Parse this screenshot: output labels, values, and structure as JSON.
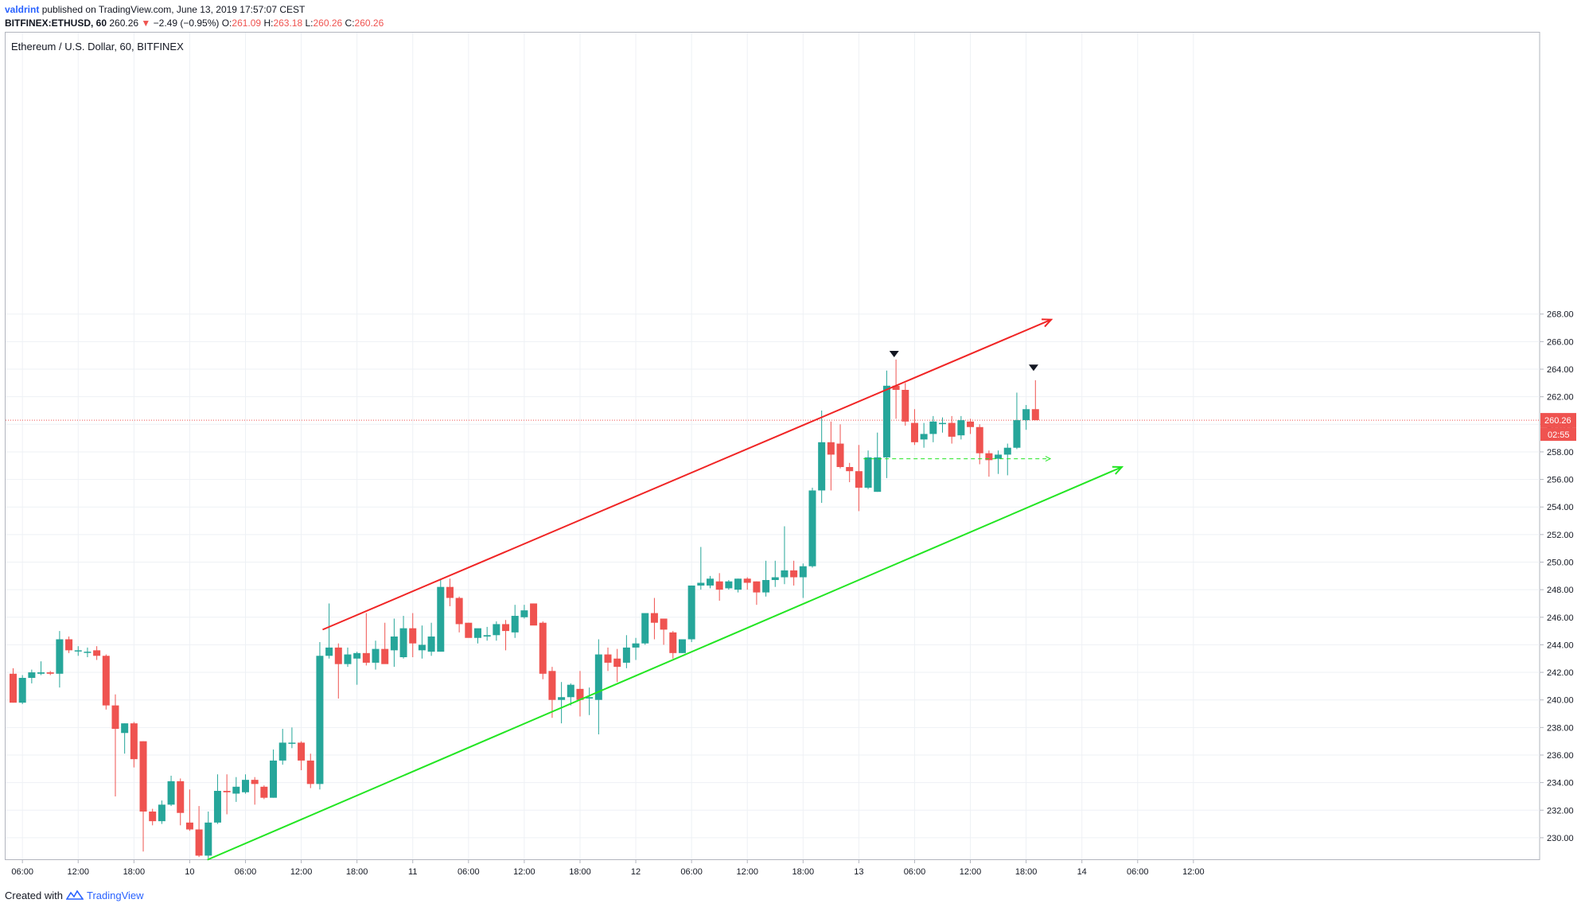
{
  "header": {
    "publisher": "valdrint",
    "published_text": "published on TradingView.com, June 13, 2019 17:57:07 CEST",
    "symbol_interval": "BITFINEX:ETHUSD, 60",
    "last": "260.26",
    "change": "−2.49 (−0.95%)",
    "o_label": "O:",
    "o_value": "261.09",
    "h_label": "H:",
    "h_value": "263.18",
    "l_label": "L:",
    "l_value": "260.26",
    "c_label": "C:",
    "c_value": "260.26"
  },
  "legend": "Ethereum / U.S. Dollar, 60, BITFINEX",
  "footer": {
    "created_with": "Created with",
    "brand": "TradingView"
  },
  "colors": {
    "up": "#26a69a",
    "down": "#ef5350",
    "resistance": "#f02525",
    "support": "#23e523",
    "grid": "#eef1f5",
    "axis": "#b2b5be"
  },
  "chart_data": {
    "type": "candlestick",
    "title": "Ethereum / U.S. Dollar, 60, BITFINEX",
    "xlabel": "",
    "ylabel": "",
    "ylim": [
      228,
      268
    ],
    "y_ticks": [
      "230.00",
      "232.00",
      "234.00",
      "236.00",
      "238.00",
      "240.00",
      "242.00",
      "244.00",
      "246.00",
      "248.00",
      "250.00",
      "252.00",
      "254.00",
      "256.00",
      "258.00",
      "260.00",
      "262.00",
      "264.00",
      "266.00",
      "268.00"
    ],
    "x_ticks": [
      {
        "h": 1,
        "label": "06:00"
      },
      {
        "h": 7,
        "label": "12:00"
      },
      {
        "h": 13,
        "label": "18:00"
      },
      {
        "h": 19,
        "label": "10"
      },
      {
        "h": 25,
        "label": "06:00"
      },
      {
        "h": 31,
        "label": "12:00"
      },
      {
        "h": 37,
        "label": "18:00"
      },
      {
        "h": 43,
        "label": "11"
      },
      {
        "h": 49,
        "label": "06:00"
      },
      {
        "h": 55,
        "label": "12:00"
      },
      {
        "h": 61,
        "label": "18:00"
      },
      {
        "h": 67,
        "label": "12"
      },
      {
        "h": 73,
        "label": "06:00"
      },
      {
        "h": 79,
        "label": "12:00"
      },
      {
        "h": 85,
        "label": "18:00"
      },
      {
        "h": 91,
        "label": "13"
      },
      {
        "h": 97,
        "label": "06:00"
      },
      {
        "h": 103,
        "label": "12:00"
      },
      {
        "h": 109,
        "label": "18:00"
      },
      {
        "h": 115,
        "label": "14"
      },
      {
        "h": 121,
        "label": "06:00"
      },
      {
        "h": 127,
        "label": "12:00"
      }
    ],
    "candles": [
      {
        "o": 241.9,
        "h": 242.3,
        "l": 239.8,
        "c": 239.8
      },
      {
        "o": 239.8,
        "h": 241.8,
        "l": 239.7,
        "c": 241.6
      },
      {
        "o": 241.6,
        "h": 242.2,
        "l": 241.2,
        "c": 242.0
      },
      {
        "o": 241.9,
        "h": 242.8,
        "l": 241.8,
        "c": 242.0
      },
      {
        "o": 242.0,
        "h": 242.1,
        "l": 241.8,
        "c": 241.9
      },
      {
        "o": 241.9,
        "h": 245.0,
        "l": 240.9,
        "c": 244.4
      },
      {
        "o": 244.4,
        "h": 244.6,
        "l": 243.4,
        "c": 243.6
      },
      {
        "o": 243.6,
        "h": 243.9,
        "l": 243.2,
        "c": 243.6
      },
      {
        "o": 243.5,
        "h": 243.8,
        "l": 243.1,
        "c": 243.5
      },
      {
        "o": 243.6,
        "h": 243.9,
        "l": 242.9,
        "c": 243.2
      },
      {
        "o": 243.2,
        "h": 243.3,
        "l": 239.3,
        "c": 239.6
      },
      {
        "o": 239.6,
        "h": 240.4,
        "l": 233.0,
        "c": 237.9
      },
      {
        "o": 237.6,
        "h": 238.3,
        "l": 236.1,
        "c": 238.3
      },
      {
        "o": 238.3,
        "h": 238.4,
        "l": 235.1,
        "c": 235.7
      },
      {
        "o": 237.0,
        "h": 237.0,
        "l": 229.0,
        "c": 231.9
      },
      {
        "o": 231.9,
        "h": 232.1,
        "l": 230.9,
        "c": 231.2
      },
      {
        "o": 231.2,
        "h": 232.7,
        "l": 231.0,
        "c": 232.4
      },
      {
        "o": 232.4,
        "h": 234.5,
        "l": 232.3,
        "c": 234.1
      },
      {
        "o": 234.1,
        "h": 234.3,
        "l": 230.9,
        "c": 231.8
      },
      {
        "o": 231.1,
        "h": 233.5,
        "l": 230.5,
        "c": 230.6
      },
      {
        "o": 230.6,
        "h": 232.3,
        "l": 228.6,
        "c": 228.7
      },
      {
        "o": 228.7,
        "h": 231.9,
        "l": 228.5,
        "c": 231.1
      },
      {
        "o": 231.1,
        "h": 234.6,
        "l": 231.0,
        "c": 233.4
      },
      {
        "o": 233.4,
        "h": 234.6,
        "l": 231.7,
        "c": 233.3
      },
      {
        "o": 233.2,
        "h": 234.4,
        "l": 232.6,
        "c": 233.7
      },
      {
        "o": 233.3,
        "h": 234.6,
        "l": 233.2,
        "c": 234.2
      },
      {
        "o": 234.2,
        "h": 234.4,
        "l": 232.4,
        "c": 233.9
      },
      {
        "o": 233.7,
        "h": 233.8,
        "l": 232.8,
        "c": 232.9
      },
      {
        "o": 232.9,
        "h": 236.4,
        "l": 232.9,
        "c": 235.6
      },
      {
        "o": 235.6,
        "h": 237.9,
        "l": 235.3,
        "c": 236.9
      },
      {
        "o": 236.9,
        "h": 238.0,
        "l": 236.5,
        "c": 236.9
      },
      {
        "o": 236.9,
        "h": 237.0,
        "l": 234.9,
        "c": 235.6
      },
      {
        "o": 235.6,
        "h": 236.1,
        "l": 233.6,
        "c": 233.9
      },
      {
        "o": 233.9,
        "h": 244.2,
        "l": 233.5,
        "c": 243.2
      },
      {
        "o": 243.2,
        "h": 247.0,
        "l": 243.0,
        "c": 243.8
      },
      {
        "o": 243.8,
        "h": 244.1,
        "l": 240.1,
        "c": 242.6
      },
      {
        "o": 242.6,
        "h": 243.8,
        "l": 242.4,
        "c": 243.3
      },
      {
        "o": 243.0,
        "h": 243.5,
        "l": 241.1,
        "c": 243.4
      },
      {
        "o": 243.4,
        "h": 246.3,
        "l": 242.5,
        "c": 242.7
      },
      {
        "o": 242.7,
        "h": 244.3,
        "l": 242.2,
        "c": 243.7
      },
      {
        "o": 243.7,
        "h": 245.6,
        "l": 242.7,
        "c": 242.6
      },
      {
        "o": 243.6,
        "h": 245.9,
        "l": 242.4,
        "c": 244.6
      },
      {
        "o": 243.1,
        "h": 246.1,
        "l": 243.0,
        "c": 245.2
      },
      {
        "o": 245.2,
        "h": 246.3,
        "l": 243.1,
        "c": 244.1
      },
      {
        "o": 243.6,
        "h": 245.4,
        "l": 243.0,
        "c": 244.0
      },
      {
        "o": 243.5,
        "h": 245.6,
        "l": 243.2,
        "c": 244.6
      },
      {
        "o": 243.5,
        "h": 248.7,
        "l": 243.5,
        "c": 248.2
      },
      {
        "o": 248.2,
        "h": 248.8,
        "l": 246.8,
        "c": 247.4
      },
      {
        "o": 247.4,
        "h": 247.5,
        "l": 244.9,
        "c": 245.5
      },
      {
        "o": 245.6,
        "h": 245.6,
        "l": 244.8,
        "c": 244.5
      },
      {
        "o": 244.5,
        "h": 245.0,
        "l": 244.1,
        "c": 245.2
      },
      {
        "o": 244.6,
        "h": 245.3,
        "l": 244.3,
        "c": 244.7
      },
      {
        "o": 244.7,
        "h": 245.7,
        "l": 244.3,
        "c": 245.5
      },
      {
        "o": 245.5,
        "h": 245.8,
        "l": 243.6,
        "c": 245.0
      },
      {
        "o": 244.9,
        "h": 246.9,
        "l": 244.5,
        "c": 246.1
      },
      {
        "o": 246.0,
        "h": 246.9,
        "l": 245.9,
        "c": 246.5
      },
      {
        "o": 247.0,
        "h": 247.0,
        "l": 245.7,
        "c": 245.4
      },
      {
        "o": 245.6,
        "h": 245.7,
        "l": 241.5,
        "c": 241.9
      },
      {
        "o": 242.1,
        "h": 242.4,
        "l": 238.7,
        "c": 240.0
      },
      {
        "o": 240.0,
        "h": 241.3,
        "l": 238.3,
        "c": 240.2
      },
      {
        "o": 240.2,
        "h": 241.2,
        "l": 239.6,
        "c": 241.1
      },
      {
        "o": 240.8,
        "h": 242.1,
        "l": 238.8,
        "c": 240.0
      },
      {
        "o": 240.1,
        "h": 240.9,
        "l": 238.9,
        "c": 240.2
      },
      {
        "o": 240.0,
        "h": 244.4,
        "l": 237.5,
        "c": 243.3
      },
      {
        "o": 243.3,
        "h": 243.8,
        "l": 242.1,
        "c": 242.7
      },
      {
        "o": 243.0,
        "h": 243.7,
        "l": 241.3,
        "c": 242.4
      },
      {
        "o": 242.7,
        "h": 244.7,
        "l": 242.3,
        "c": 243.8
      },
      {
        "o": 243.8,
        "h": 244.5,
        "l": 242.9,
        "c": 244.1
      },
      {
        "o": 244.1,
        "h": 246.1,
        "l": 244.0,
        "c": 246.3
      },
      {
        "o": 246.3,
        "h": 247.4,
        "l": 244.4,
        "c": 245.6
      },
      {
        "o": 245.9,
        "h": 245.9,
        "l": 244.0,
        "c": 245.1
      },
      {
        "o": 244.9,
        "h": 245.0,
        "l": 243.0,
        "c": 243.4
      },
      {
        "o": 243.4,
        "h": 244.4,
        "l": 243.4,
        "c": 244.4
      },
      {
        "o": 244.4,
        "h": 248.3,
        "l": 244.2,
        "c": 248.3
      },
      {
        "o": 248.3,
        "h": 251.1,
        "l": 248.0,
        "c": 248.5
      },
      {
        "o": 248.3,
        "h": 249.0,
        "l": 248.1,
        "c": 248.8
      },
      {
        "o": 248.6,
        "h": 249.2,
        "l": 247.2,
        "c": 248.0
      },
      {
        "o": 248.1,
        "h": 248.7,
        "l": 248.0,
        "c": 248.6
      },
      {
        "o": 248.0,
        "h": 248.8,
        "l": 247.8,
        "c": 248.8
      },
      {
        "o": 248.8,
        "h": 248.9,
        "l": 248.0,
        "c": 248.5
      },
      {
        "o": 248.6,
        "h": 248.6,
        "l": 246.9,
        "c": 247.8
      },
      {
        "o": 247.8,
        "h": 250.1,
        "l": 247.5,
        "c": 248.7
      },
      {
        "o": 248.7,
        "h": 250.1,
        "l": 248.2,
        "c": 248.9
      },
      {
        "o": 248.9,
        "h": 252.6,
        "l": 248.4,
        "c": 249.4
      },
      {
        "o": 249.4,
        "h": 250.1,
        "l": 248.3,
        "c": 248.9
      },
      {
        "o": 248.9,
        "h": 249.9,
        "l": 247.4,
        "c": 249.7
      },
      {
        "o": 249.7,
        "h": 255.4,
        "l": 249.6,
        "c": 255.2
      },
      {
        "o": 255.2,
        "h": 261.0,
        "l": 254.3,
        "c": 258.7
      },
      {
        "o": 258.7,
        "h": 260.2,
        "l": 255.2,
        "c": 257.8
      },
      {
        "o": 258.6,
        "h": 260.0,
        "l": 256.8,
        "c": 256.9
      },
      {
        "o": 256.9,
        "h": 257.2,
        "l": 255.8,
        "c": 256.6
      },
      {
        "o": 256.6,
        "h": 258.5,
        "l": 253.7,
        "c": 255.4
      },
      {
        "o": 255.4,
        "h": 258.1,
        "l": 255.3,
        "c": 257.6
      },
      {
        "o": 255.1,
        "h": 259.4,
        "l": 255.1,
        "c": 257.6
      },
      {
        "o": 257.6,
        "h": 263.9,
        "l": 256.1,
        "c": 262.8
      },
      {
        "o": 262.8,
        "h": 264.7,
        "l": 260.4,
        "c": 262.5
      },
      {
        "o": 262.5,
        "h": 263.0,
        "l": 259.9,
        "c": 260.2
      },
      {
        "o": 260.1,
        "h": 261.1,
        "l": 258.5,
        "c": 258.7
      },
      {
        "o": 258.9,
        "h": 260.1,
        "l": 258.3,
        "c": 259.3
      },
      {
        "o": 259.3,
        "h": 260.6,
        "l": 258.7,
        "c": 260.2
      },
      {
        "o": 260.1,
        "h": 260.5,
        "l": 259.4,
        "c": 260.1
      },
      {
        "o": 260.1,
        "h": 260.6,
        "l": 258.6,
        "c": 259.1
      },
      {
        "o": 259.2,
        "h": 260.6,
        "l": 258.9,
        "c": 260.3
      },
      {
        "o": 260.2,
        "h": 260.4,
        "l": 259.3,
        "c": 259.8
      },
      {
        "o": 259.8,
        "h": 260.0,
        "l": 257.1,
        "c": 257.9
      },
      {
        "o": 257.9,
        "h": 258.1,
        "l": 256.2,
        "c": 257.4
      },
      {
        "o": 257.5,
        "h": 258.1,
        "l": 256.4,
        "c": 257.8
      },
      {
        "o": 257.8,
        "h": 258.6,
        "l": 256.3,
        "c": 258.3
      },
      {
        "o": 258.3,
        "h": 262.3,
        "l": 258.2,
        "c": 260.3
      },
      {
        "o": 260.3,
        "h": 261.4,
        "l": 259.6,
        "c": 261.1
      },
      {
        "o": 261.1,
        "h": 263.2,
        "l": 260.3,
        "c": 260.3
      }
    ],
    "last_price_label": "260.26",
    "countdown_label": "02:55",
    "trend_lines": [
      {
        "name": "resistance",
        "from": {
          "h": 33.3,
          "y": 245.1
        },
        "to": {
          "h": 111.7,
          "y": 267.6
        },
        "arrow": true
      },
      {
        "name": "support",
        "from": {
          "h": 20.9,
          "y": 228.4
        },
        "to": {
          "h": 119.3,
          "y": 256.9
        },
        "arrow": true
      },
      {
        "name": "level",
        "from": {
          "h": 91.5,
          "y": 257.5
        },
        "to": {
          "h": 111.6,
          "y": 257.5
        },
        "dashed": true,
        "arrow": true
      }
    ],
    "markers": [
      {
        "name": "top-marker-1",
        "h": 94.8,
        "y": 265.1
      },
      {
        "name": "top-marker-2",
        "h": 109.8,
        "y": 264.1
      }
    ]
  }
}
